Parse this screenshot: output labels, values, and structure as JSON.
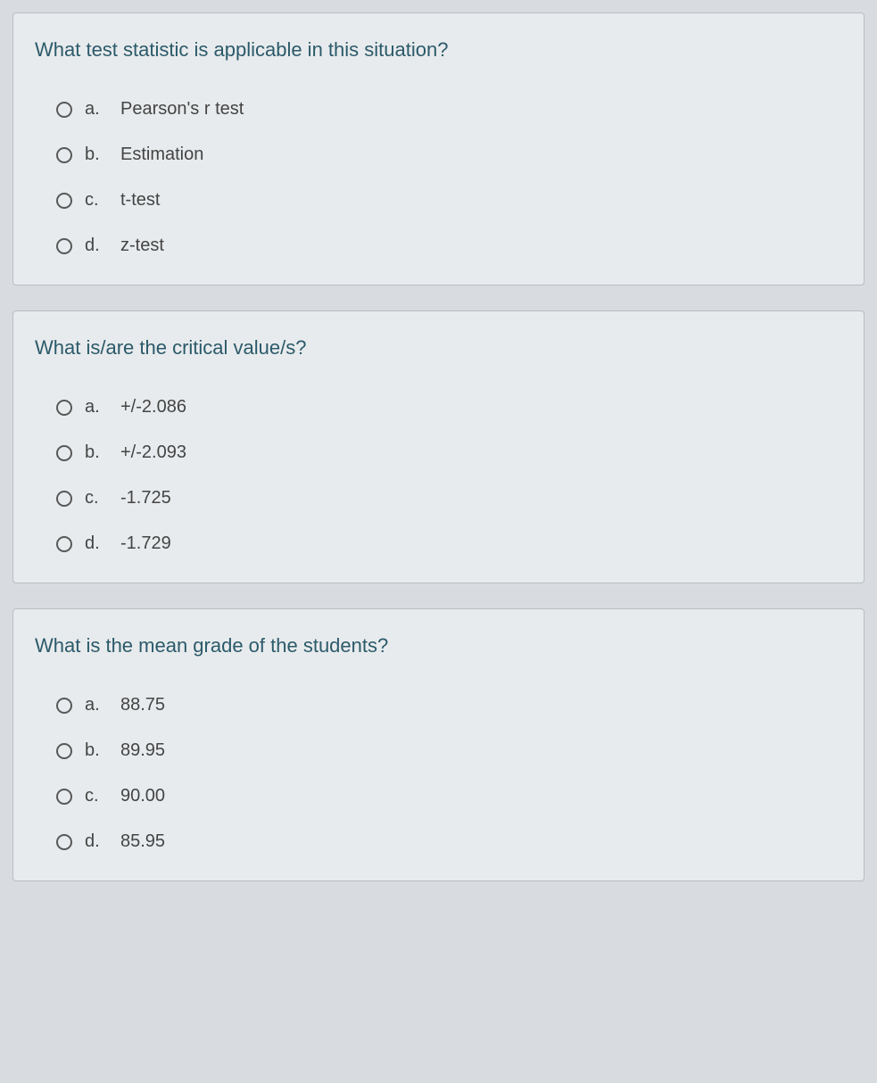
{
  "colors": {
    "page_background": "#d8dce0",
    "card_background": "#e8ebed",
    "card_border": "#b8bec2",
    "question_text": "#2b5a6a",
    "option_text": "#444444",
    "radio_border": "#585858"
  },
  "typography": {
    "question_fontsize": 22,
    "option_fontsize": 20,
    "font_family": "Arial"
  },
  "questions": [
    {
      "prompt": "What test statistic is applicable in this situation?",
      "options": [
        {
          "letter": "a.",
          "text": "Pearson's r test"
        },
        {
          "letter": "b.",
          "text": "Estimation"
        },
        {
          "letter": "c.",
          "text": "t-test"
        },
        {
          "letter": "d.",
          "text": "z-test"
        }
      ]
    },
    {
      "prompt": "What is/are the critical value/s?",
      "options": [
        {
          "letter": "a.",
          "text": "+/-2.086"
        },
        {
          "letter": "b.",
          "text": "+/-2.093"
        },
        {
          "letter": "c.",
          "text": "-1.725"
        },
        {
          "letter": "d.",
          "text": "-1.729"
        }
      ]
    },
    {
      "prompt": "What is the mean grade of the students?",
      "options": [
        {
          "letter": "a.",
          "text": "88.75"
        },
        {
          "letter": "b.",
          "text": "89.95"
        },
        {
          "letter": "c.",
          "text": "90.00"
        },
        {
          "letter": "d.",
          "text": "85.95"
        }
      ]
    }
  ]
}
